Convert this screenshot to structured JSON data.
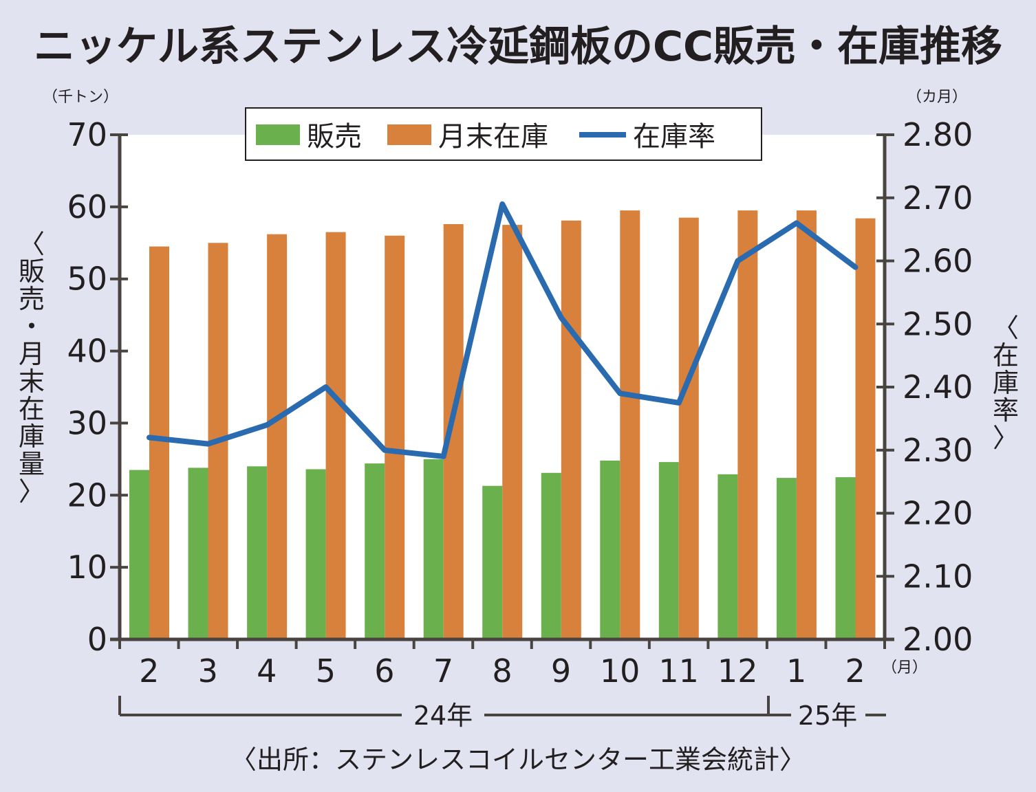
{
  "title": "ニッケル系ステンレス冷延鋼板のCC販売・在庫推移",
  "units": {
    "left": "（千トン）",
    "right": "（カ月）",
    "month": "（月）"
  },
  "axis_labels": {
    "left": [
      "〈",
      "販",
      "売",
      "・",
      "月",
      "末",
      "在",
      "庫",
      "量",
      "〉"
    ],
    "right": [
      "〈",
      "在",
      "庫",
      "率",
      "〉"
    ]
  },
  "legend": {
    "sales": "販売",
    "stock": "月末在庫",
    "ratio": "在庫率"
  },
  "years": {
    "y24": "24年",
    "y25": "25年"
  },
  "source": "〈出所：ステンレスコイルセンター工業会統計〉",
  "colors": {
    "sales": "#6ab04c",
    "stock": "#d8813c",
    "ratio": "#2a6bb0",
    "axis": "#4a4440",
    "plot_bg": "#ffffff",
    "page_bg": "#e2e3f0"
  },
  "chart_data": {
    "type": "bar",
    "categories": [
      "2",
      "3",
      "4",
      "5",
      "6",
      "7",
      "8",
      "9",
      "10",
      "11",
      "12",
      "1",
      "2"
    ],
    "series": [
      {
        "name": "販売",
        "type": "bar",
        "axis": "left",
        "values": [
          23.5,
          23.8,
          24.0,
          23.6,
          24.4,
          25.0,
          21.3,
          23.1,
          24.8,
          24.6,
          22.9,
          22.4,
          22.5
        ]
      },
      {
        "name": "月末在庫",
        "type": "bar",
        "axis": "left",
        "values": [
          54.5,
          55.0,
          56.2,
          56.5,
          56.0,
          57.6,
          57.5,
          58.1,
          59.5,
          58.5,
          59.5,
          59.5,
          58.4
        ]
      },
      {
        "name": "在庫率",
        "type": "line",
        "axis": "right",
        "values": [
          2.32,
          2.31,
          2.34,
          2.4,
          2.3,
          2.29,
          2.69,
          2.51,
          2.39,
          2.375,
          2.6,
          2.66,
          2.59
        ]
      }
    ],
    "ylim_left": [
      0,
      70
    ],
    "yticks_left": [
      "0",
      "10",
      "20",
      "30",
      "40",
      "50",
      "60",
      "70"
    ],
    "ylim_right": [
      2.0,
      2.8
    ],
    "yticks_right": [
      "2.00",
      "2.10",
      "2.20",
      "2.30",
      "2.40",
      "2.50",
      "2.60",
      "2.70",
      "2.80"
    ],
    "grid": false,
    "legend_position": "top-center"
  }
}
